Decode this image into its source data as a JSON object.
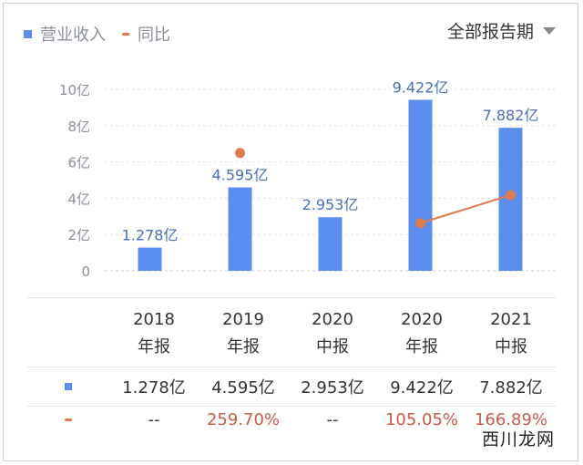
{
  "legend": {
    "bar_label": "营业收入",
    "line_label": "同比"
  },
  "period_select": {
    "label": "全部报告期"
  },
  "colors": {
    "bar": "#5b8def",
    "line": "#e07a4f",
    "positive_text": "#c75b4d"
  },
  "chart_data": {
    "type": "bar",
    "categories": [
      "2018年报",
      "2019年报",
      "2020中报",
      "2020年报",
      "2021中报"
    ],
    "ylim": [
      0,
      10
    ],
    "yticks": [
      "0",
      "2亿",
      "4亿",
      "6亿",
      "8亿",
      "10亿"
    ],
    "series": [
      {
        "name": "营业收入",
        "type": "bar",
        "values": [
          1.278,
          4.595,
          2.953,
          9.422,
          7.882
        ],
        "labels": [
          "1.278亿",
          "4.595亿",
          "2.953亿",
          "9.422亿",
          "7.882亿"
        ]
      },
      {
        "name": "同比",
        "type": "line",
        "values": [
          null,
          259.7,
          null,
          105.05,
          166.89
        ]
      }
    ],
    "grid": true
  },
  "table": {
    "headers": [
      {
        "year": "2018",
        "period": "年报"
      },
      {
        "year": "2019",
        "period": "年报"
      },
      {
        "year": "2020",
        "period": "中报"
      },
      {
        "year": "2020",
        "period": "年报"
      },
      {
        "year": "2021",
        "period": "中报"
      }
    ],
    "revenue_row": [
      "1.278亿",
      "4.595亿",
      "2.953亿",
      "9.422亿",
      "7.882亿"
    ],
    "yoy_row": [
      "--",
      "259.70%",
      "--",
      "105.05%",
      "166.89%"
    ]
  },
  "watermark": "西川龙网"
}
